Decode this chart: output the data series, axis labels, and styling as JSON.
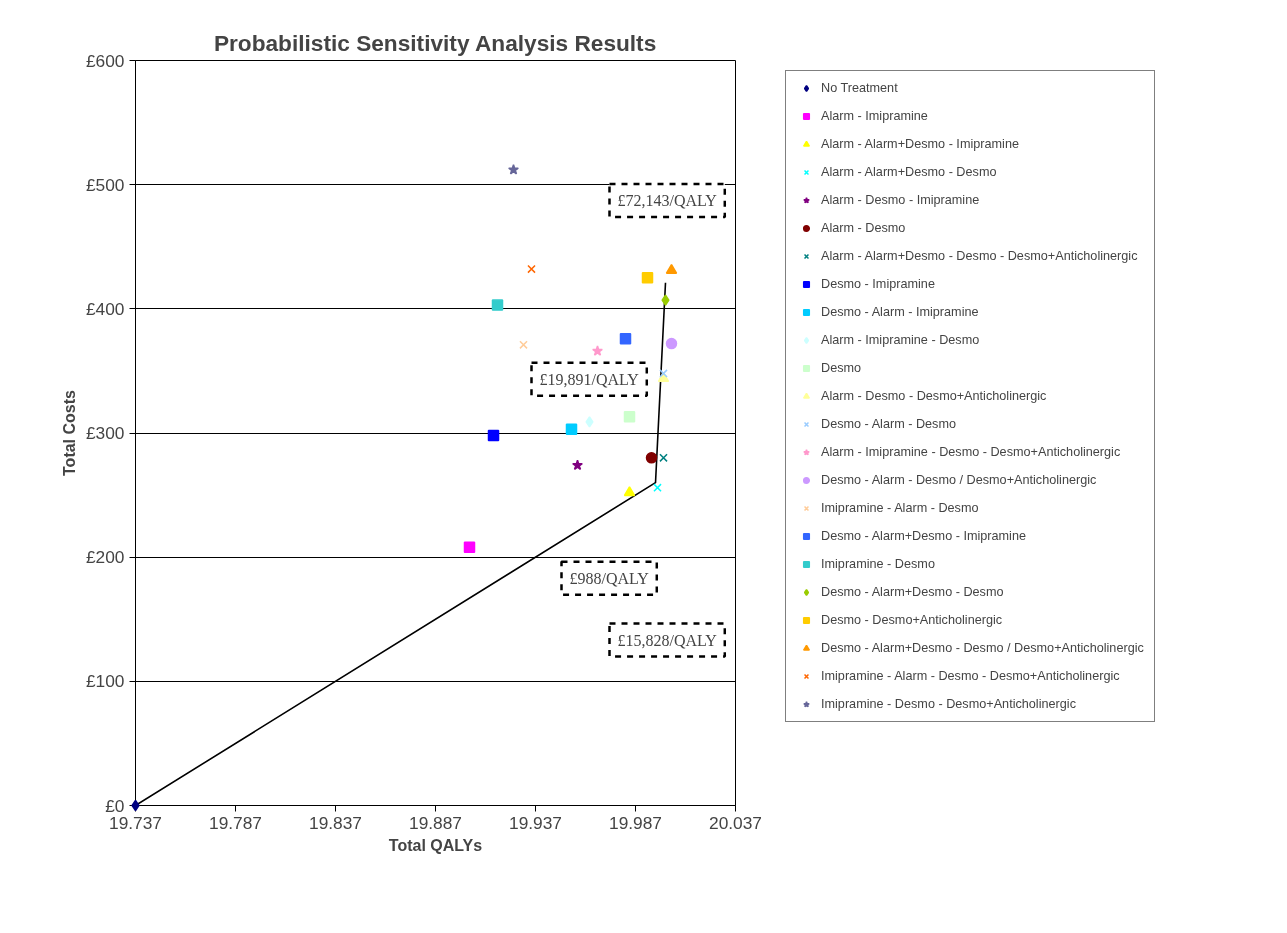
{
  "chart_data": {
    "type": "scatter",
    "title": "Probabilistic Sensitivity Analysis Results",
    "xlabel": "Total QALYs",
    "ylabel": "Total Costs",
    "xlim": [
      19.737,
      20.037
    ],
    "xticks": [
      19.737,
      19.787,
      19.837,
      19.887,
      19.937,
      19.987,
      20.037
    ],
    "ylim": [
      0,
      600
    ],
    "yticks": [
      {
        "value": 0,
        "label": "£0"
      },
      {
        "value": 100,
        "label": "£100"
      },
      {
        "value": 200,
        "label": "£200"
      },
      {
        "value": 300,
        "label": "£300"
      },
      {
        "value": 400,
        "label": "£400"
      },
      {
        "value": 500,
        "label": "£500"
      },
      {
        "value": 600,
        "label": "£600"
      }
    ],
    "grid": "y",
    "legend": "right",
    "annotations": [
      "£72,143/QALY",
      "£19,891/QALY",
      "£15,828/QALY",
      "£988/QALY"
    ],
    "series": [
      {
        "name": "No Treatment",
        "color": "#000080",
        "marker": "diamond",
        "x": [
          19.737
        ],
        "values": [
          0
        ]
      },
      {
        "name": "Alarm - Imipramine",
        "color": "#ff00ff",
        "marker": "square",
        "x": [
          19.904
        ],
        "values": [
          208
        ]
      },
      {
        "name": "Alarm - Alarm+Desmo - Imipramine",
        "color": "#ffff00",
        "marker": "triangle",
        "x": [
          19.984
        ],
        "values": [
          252
        ]
      },
      {
        "name": "Alarm - Alarm+Desmo - Desmo",
        "color": "#00ffff",
        "marker": "cross",
        "x": [
          19.998
        ],
        "values": [
          256
        ]
      },
      {
        "name": "Alarm - Desmo - Imipramine",
        "color": "#800080",
        "marker": "star",
        "x": [
          19.958
        ],
        "values": [
          274
        ]
      },
      {
        "name": "Alarm - Desmo",
        "color": "#800000",
        "marker": "circle",
        "x": [
          19.995
        ],
        "values": [
          280
        ]
      },
      {
        "name": "Alarm - Alarm+Desmo - Desmo - Desmo+Anticholinergic",
        "color": "#008080",
        "marker": "cross",
        "x": [
          20.001
        ],
        "values": [
          280
        ]
      },
      {
        "name": "Desmo - Imipramine",
        "color": "#0000ff",
        "marker": "square",
        "x": [
          19.916
        ],
        "values": [
          298
        ]
      },
      {
        "name": "Desmo - Alarm - Imipramine",
        "color": "#00ccff",
        "marker": "square",
        "x": [
          19.955
        ],
        "values": [
          303
        ]
      },
      {
        "name": "Alarm - Imipramine - Desmo",
        "color": "#ccffff",
        "marker": "diamond",
        "x": [
          19.964
        ],
        "values": [
          309
        ]
      },
      {
        "name": "Desmo",
        "color": "#ccffcc",
        "marker": "square",
        "x": [
          19.984
        ],
        "values": [
          313
        ]
      },
      {
        "name": "Alarm - Desmo - Desmo+Anticholinergic",
        "color": "#ffff99",
        "marker": "triangle",
        "x": [
          20.001
        ],
        "values": [
          344
        ]
      },
      {
        "name": "Desmo - Alarm - Desmo",
        "color": "#99ccff",
        "marker": "cross",
        "x": [
          20.001
        ],
        "values": [
          348
        ]
      },
      {
        "name": "Alarm - Imipramine - Desmo - Desmo+Anticholinergic",
        "color": "#ff99cc",
        "marker": "star",
        "x": [
          19.968
        ],
        "values": [
          366
        ]
      },
      {
        "name": "Desmo - Alarm - Desmo / Desmo+Anticholinergic",
        "color": "#cc99ff",
        "marker": "circle",
        "x": [
          20.005
        ],
        "values": [
          372
        ]
      },
      {
        "name": "Imipramine - Alarm - Desmo",
        "color": "#ffcc99",
        "marker": "cross",
        "x": [
          19.931
        ],
        "values": [
          371
        ]
      },
      {
        "name": "Desmo - Alarm+Desmo - Imipramine",
        "color": "#3366ff",
        "marker": "square",
        "x": [
          19.982
        ],
        "values": [
          376
        ]
      },
      {
        "name": "Imipramine - Desmo",
        "color": "#33cccc",
        "marker": "square",
        "x": [
          19.918
        ],
        "values": [
          403
        ]
      },
      {
        "name": "Desmo - Alarm+Desmo - Desmo",
        "color": "#99cc00",
        "marker": "diamond",
        "x": [
          20.002
        ],
        "values": [
          407
        ]
      },
      {
        "name": "Desmo - Desmo+Anticholinergic",
        "color": "#ffcc00",
        "marker": "square",
        "x": [
          19.993
        ],
        "values": [
          425
        ]
      },
      {
        "name": "Desmo - Alarm+Desmo - Desmo / Desmo+Anticholinergic",
        "color": "#ff9900",
        "marker": "triangle",
        "x": [
          20.005
        ],
        "values": [
          431
        ]
      },
      {
        "name": "Imipramine - Alarm - Desmo - Desmo+Anticholinergic",
        "color": "#ff6600",
        "marker": "cross",
        "x": [
          19.935
        ],
        "values": [
          432
        ]
      },
      {
        "name": "Imipramine - Desmo - Desmo+Anticholinergic",
        "color": "#666699",
        "marker": "star",
        "x": [
          19.926
        ],
        "values": [
          512
        ]
      },
      {
        "type": "line",
        "color": "#000000",
        "line_style": "solid",
        "x": [
          19.737,
          19.997,
          20.002
        ],
        "values": [
          0,
          260,
          421
        ]
      }
    ]
  }
}
